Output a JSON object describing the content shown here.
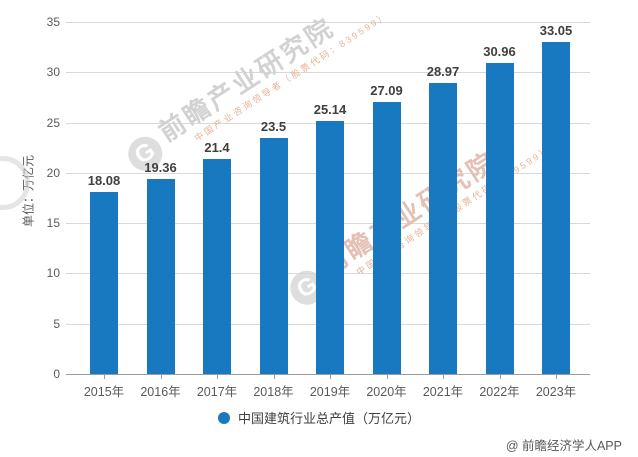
{
  "chart_data": {
    "type": "bar",
    "title": "",
    "categories": [
      "2015年",
      "2016年",
      "2017年",
      "2018年",
      "2019年",
      "2020年",
      "2021年",
      "2022年",
      "2023年"
    ],
    "values": [
      18.08,
      19.36,
      21.4,
      23.5,
      25.14,
      27.09,
      28.97,
      30.96,
      33.05
    ],
    "value_labels": [
      "18.08",
      "19.36",
      "21.4",
      "23.5",
      "25.14",
      "27.09",
      "28.97",
      "30.96",
      "33.05"
    ],
    "series_name": "中国建筑行业总产值（万亿元）",
    "xlabel": "",
    "ylabel": "单位：万亿元",
    "ylim": [
      0,
      35
    ],
    "yticks": [
      0,
      5,
      10,
      15,
      20,
      25,
      30,
      35
    ],
    "grid": true,
    "legend_position": "bottom",
    "bar_color": "#1979c0"
  },
  "legend": {
    "marker_color": "#1979c0",
    "label": "中国建筑行业总产值（万亿元）"
  },
  "watermark": {
    "logo_letter": "G",
    "brand_text": "前瞻产业研究院",
    "sub_text": "中国产业咨询领导者（股票代码：839599）"
  },
  "credit_text": "@ 前瞻经济学人APP",
  "colors": {
    "bar": "#1979c0",
    "gridline": "#d9d9d9",
    "axis": "#9b9b9b",
    "tick_label": "#595959",
    "data_label": "#3f3f3f",
    "watermark_gray": "#d2d2d2",
    "watermark_salmon": "#e4c0b4",
    "watermark_subtext": "#e6b395",
    "background": "#ffffff"
  }
}
